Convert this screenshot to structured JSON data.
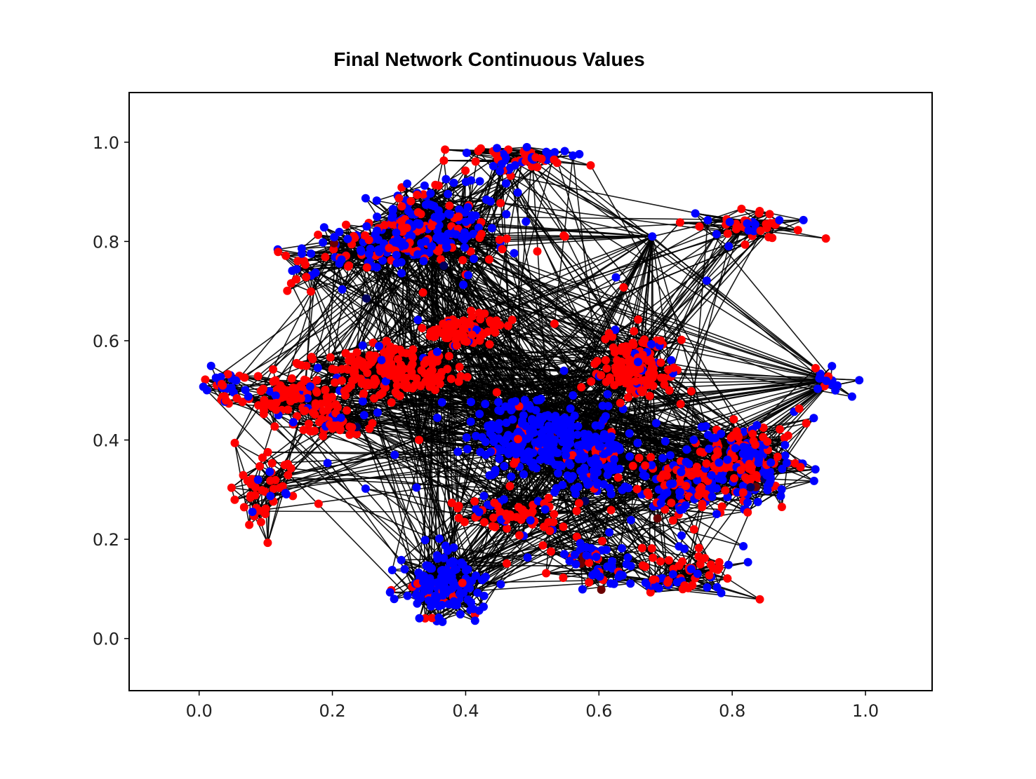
{
  "chart_data": {
    "type": "scatter",
    "title": "Final Network Continuous Values",
    "xlabel": "",
    "ylabel": "",
    "xlim": [
      -0.105,
      1.1
    ],
    "ylim": [
      -0.105,
      1.1
    ],
    "xticks": [
      0.0,
      0.2,
      0.4,
      0.6,
      0.8,
      1.0
    ],
    "yticks": [
      0.0,
      0.2,
      0.4,
      0.6,
      0.8,
      1.0
    ],
    "xtick_labels": [
      "0.0",
      "0.2",
      "0.4",
      "0.6",
      "0.8",
      "1.0"
    ],
    "ytick_labels": [
      "0.0",
      "0.2",
      "0.4",
      "0.6",
      "0.8",
      "1.0"
    ],
    "grid": false,
    "legend": "none",
    "node_colors": {
      "red": "#ff0000",
      "blue": "#0000ff",
      "dark": "#6b0000",
      "navy": "#000060"
    },
    "edge_color": "#000000",
    "hubs": [
      {
        "x": 0.33,
        "y": 0.4,
        "color": "red"
      },
      {
        "x": 0.68,
        "y": 0.81,
        "color": "blue"
      },
      {
        "x": 0.95,
        "y": 0.52,
        "color": "blue"
      },
      {
        "x": 0.35,
        "y": 0.54,
        "color": "red"
      },
      {
        "x": 0.55,
        "y": 0.38,
        "color": "blue"
      }
    ],
    "clusters": [
      {
        "x": 0.36,
        "y": 0.84,
        "rx": 0.09,
        "ry": 0.08,
        "n": 170,
        "red": 0.35
      },
      {
        "x": 0.27,
        "y": 0.79,
        "rx": 0.1,
        "ry": 0.05,
        "n": 90,
        "red": 0.35
      },
      {
        "x": 0.47,
        "y": 0.97,
        "rx": 0.08,
        "ry": 0.03,
        "n": 50,
        "red": 0.55
      },
      {
        "x": 0.28,
        "y": 0.54,
        "rx": 0.09,
        "ry": 0.05,
        "n": 170,
        "red": 0.92
      },
      {
        "x": 0.4,
        "y": 0.62,
        "rx": 0.05,
        "ry": 0.03,
        "n": 80,
        "red": 0.95
      },
      {
        "x": 0.13,
        "y": 0.49,
        "rx": 0.07,
        "ry": 0.04,
        "n": 90,
        "red": 0.85
      },
      {
        "x": 0.2,
        "y": 0.44,
        "rx": 0.05,
        "ry": 0.03,
        "n": 45,
        "red": 0.9
      },
      {
        "x": 0.03,
        "y": 0.51,
        "rx": 0.03,
        "ry": 0.03,
        "n": 25,
        "red": 0.3
      },
      {
        "x": 0.1,
        "y": 0.3,
        "rx": 0.04,
        "ry": 0.07,
        "n": 45,
        "red": 0.85
      },
      {
        "x": 0.5,
        "y": 0.41,
        "rx": 0.08,
        "ry": 0.07,
        "n": 200,
        "red": 0.05
      },
      {
        "x": 0.6,
        "y": 0.36,
        "rx": 0.07,
        "ry": 0.08,
        "n": 130,
        "red": 0.12
      },
      {
        "x": 0.65,
        "y": 0.55,
        "rx": 0.06,
        "ry": 0.06,
        "n": 140,
        "red": 0.85
      },
      {
        "x": 0.82,
        "y": 0.36,
        "rx": 0.07,
        "ry": 0.08,
        "n": 170,
        "red": 0.55
      },
      {
        "x": 0.72,
        "y": 0.31,
        "rx": 0.06,
        "ry": 0.06,
        "n": 100,
        "red": 0.45
      },
      {
        "x": 0.37,
        "y": 0.11,
        "rx": 0.05,
        "ry": 0.06,
        "n": 150,
        "red": 0.12
      },
      {
        "x": 0.47,
        "y": 0.25,
        "rx": 0.07,
        "ry": 0.03,
        "n": 60,
        "red": 0.75
      },
      {
        "x": 0.6,
        "y": 0.15,
        "rx": 0.07,
        "ry": 0.06,
        "n": 60,
        "red": 0.4
      },
      {
        "x": 0.74,
        "y": 0.13,
        "rx": 0.07,
        "ry": 0.05,
        "n": 50,
        "red": 0.55
      },
      {
        "x": 0.83,
        "y": 0.83,
        "rx": 0.08,
        "ry": 0.03,
        "n": 40,
        "red": 0.7
      },
      {
        "x": 0.95,
        "y": 0.52,
        "rx": 0.03,
        "ry": 0.03,
        "n": 16,
        "red": 0.15
      },
      {
        "x": 0.18,
        "y": 0.74,
        "rx": 0.06,
        "ry": 0.04,
        "n": 20,
        "red": 0.5
      }
    ]
  }
}
